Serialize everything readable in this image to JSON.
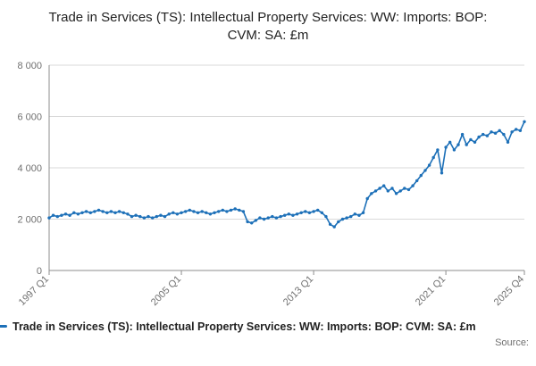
{
  "chart_data": {
    "type": "line",
    "title": "Trade in Services (TS): Intellectual Property Services: WW: Imports: BOP: CVM: SA: £m",
    "series_name": "Trade in Services (TS): Intellectual Property Services: WW: Imports: BOP: CVM: SA: £m",
    "frequency": "quarterly",
    "x_start": "1997 Q1",
    "x_end": "2025 Q4",
    "ylim": [
      0,
      8000
    ],
    "grid": true,
    "legend_position": "bottom",
    "line_color": "#1d70b8",
    "y_ticks": [
      {
        "value": 0,
        "label": "0"
      },
      {
        "value": 2000,
        "label": "2 000"
      },
      {
        "value": 4000,
        "label": "4 000"
      },
      {
        "value": 6000,
        "label": "6 000"
      },
      {
        "value": 8000,
        "label": "8 000"
      }
    ],
    "x_ticks": [
      {
        "index": 0,
        "label": "1997 Q1"
      },
      {
        "index": 32,
        "label": "2005 Q1"
      },
      {
        "index": 64,
        "label": "2013 Q1"
      },
      {
        "index": 96,
        "label": "2021 Q1"
      },
      {
        "index": 115,
        "label": "2025 Q4"
      }
    ],
    "values": [
      2050,
      2150,
      2100,
      2150,
      2200,
      2150,
      2250,
      2200,
      2250,
      2300,
      2250,
      2300,
      2350,
      2300,
      2250,
      2300,
      2250,
      2300,
      2250,
      2200,
      2100,
      2150,
      2100,
      2050,
      2100,
      2050,
      2100,
      2150,
      2100,
      2200,
      2250,
      2200,
      2250,
      2300,
      2350,
      2300,
      2250,
      2300,
      2250,
      2200,
      2250,
      2300,
      2350,
      2300,
      2350,
      2400,
      2350,
      2300,
      1900,
      1850,
      1950,
      2050,
      2000,
      2050,
      2100,
      2050,
      2100,
      2150,
      2200,
      2150,
      2200,
      2250,
      2300,
      2250,
      2300,
      2350,
      2250,
      2100,
      1800,
      1700,
      1900,
      2000,
      2050,
      2100,
      2200,
      2150,
      2250,
      2800,
      3000,
      3100,
      3200,
      3300,
      3100,
      3200,
      3000,
      3100,
      3200,
      3150,
      3300,
      3500,
      3700,
      3900,
      4100,
      4400,
      4700,
      3800,
      4800,
      5000,
      4700,
      4900,
      5300,
      4900,
      5100,
      5000,
      5200,
      5300,
      5250,
      5400,
      5350,
      5450,
      5300,
      5000,
      5400,
      5500,
      5450,
      5800
    ]
  },
  "legend": {
    "label": "Trade in Services (TS): Intellectual Property Services: WW: Imports: BOP: CVM: SA: £m"
  },
  "footer": {
    "source_label": "Source:"
  }
}
